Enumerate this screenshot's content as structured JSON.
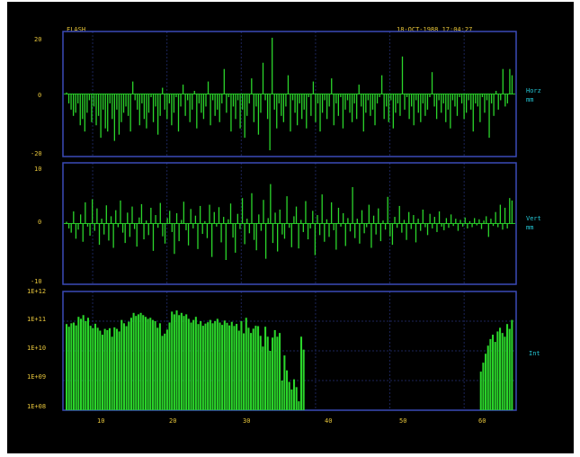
{
  "header": {
    "label": "FLASH",
    "timestamp": "18-OCT-1988 17:04:27"
  },
  "colors": {
    "background": "#000000",
    "frame": "#3a4ab8",
    "grid": "#1b2458",
    "bar": "#2bd62b",
    "axis_text": "#e6c53b",
    "side_text": "#24c7d6"
  },
  "chart_data": [
    {
      "type": "bar",
      "panel": "horizontal",
      "side_label": [
        "Horz",
        "mm"
      ],
      "y_ticks": [
        "20",
        "0",
        "-20"
      ],
      "ylim": [
        -20,
        20
      ],
      "grid": true,
      "values": [
        0.5,
        -3,
        -5,
        -7,
        -6,
        -3,
        -10,
        -8,
        -12,
        -6,
        -2,
        -9,
        -4,
        -10,
        -7,
        -14,
        -5,
        -11,
        -12,
        -3,
        -8,
        -15,
        -5,
        -13,
        -9,
        -6,
        -4,
        -7,
        -12,
        4,
        -2,
        -5,
        -10,
        -3,
        -8,
        -11,
        -6,
        -1,
        -9,
        -4,
        -13,
        -7,
        2,
        -5,
        -8,
        -3,
        -10,
        -6,
        -1,
        -12,
        -4,
        3,
        -7,
        -2,
        -9,
        -5,
        1,
        -11,
        -3,
        -6,
        -8,
        -4,
        4,
        -10,
        -2,
        -7,
        -5,
        -9,
        -3,
        8,
        -6,
        -1,
        -12,
        -4,
        -8,
        -2,
        -11,
        -5,
        -14,
        -7,
        -3,
        5,
        -9,
        -4,
        -13,
        -6,
        10,
        -2,
        -8,
        -18,
        18,
        -5,
        -11,
        -3,
        -7,
        -9,
        -4,
        6,
        -12,
        -2,
        -6,
        -10,
        -3,
        -8,
        -5,
        -11,
        -1,
        -7,
        4,
        -9,
        -3,
        -12,
        -6,
        -2,
        -8,
        -4,
        5,
        -10,
        -3,
        -7,
        -1,
        -11,
        -5,
        -2,
        -6,
        -9,
        -3,
        -8,
        3,
        -4,
        -12,
        -6,
        -2,
        -7,
        -5,
        -10,
        -3,
        -1,
        6,
        -8,
        -4,
        -9,
        -2,
        -11,
        -6,
        -3,
        -7,
        12,
        -5,
        -1,
        -8,
        -4,
        -10,
        -2,
        -6,
        -9,
        -3,
        -7,
        -5,
        -1,
        7,
        -4,
        -8,
        -2,
        -6,
        -3,
        -9,
        -5,
        -11,
        -2,
        -4,
        -7,
        -1,
        -3,
        -8,
        -6,
        -2,
        -5,
        -12,
        -3,
        -4,
        -9,
        -1,
        -6,
        -2,
        -14,
        -3,
        -7,
        1,
        -5,
        -2,
        8,
        -4,
        -3,
        8,
        6
      ]
    },
    {
      "type": "bar",
      "panel": "vertical",
      "side_label": [
        "Vert",
        "mm"
      ],
      "y_ticks": [
        "10",
        "0",
        "-10"
      ],
      "ylim": [
        -10,
        10
      ],
      "grid": true,
      "values": [
        0.3,
        -0.8,
        -1.5,
        2,
        -2.5,
        -1,
        1.5,
        -3,
        3.5,
        -0.5,
        -2,
        4,
        -1.2,
        2.5,
        -3.5,
        0.8,
        -1.8,
        3,
        -2.8,
        1.2,
        -4,
        2.2,
        -0.6,
        3.8,
        -1.5,
        -3.2,
        1.8,
        -2.2,
        2.8,
        -0.9,
        -3.8,
        1,
        3.2,
        -2.6,
        0.5,
        -1.9,
        2.6,
        -4.5,
        1.4,
        -0.7,
        3.4,
        -2.1,
        -3.3,
        0.9,
        2.1,
        -1.4,
        -5,
        1.7,
        -2.9,
        0.6,
        3.6,
        -1.1,
        -3.6,
        2.4,
        -0.8,
        1.3,
        -4.2,
        2.9,
        -1.7,
        0.4,
        -2.4,
        3.1,
        -5.5,
        1.9,
        -0.5,
        2.7,
        -3.1,
        1.1,
        -6,
        0.7,
        3.3,
        -2.3,
        -4.8,
        1.6,
        -0.9,
        4.2,
        -3.4,
        0.8,
        -1.6,
        5,
        -2.7,
        -4.4,
        1.5,
        -1.2,
        3.9,
        -5.8,
        0.9,
        6.5,
        -3.2,
        1.8,
        -4.6,
        2.3,
        -1.8,
        -2.5,
        4.5,
        -0.7,
        -3.9,
        1.2,
        2.8,
        -4.1,
        0.6,
        -1.4,
        3.7,
        -2.6,
        -0.8,
        2.1,
        -5.2,
        1.4,
        -1.9,
        4.8,
        -3,
        0.7,
        -2.2,
        3.5,
        -1.1,
        -4.3,
        2.6,
        -0.5,
        1.7,
        -3.7,
        0.9,
        -1.3,
        6,
        -2.4,
        0.8,
        -3.3,
        2.2,
        -1.6,
        -0.6,
        3.1,
        -4,
        1.3,
        -1.8,
        2.5,
        -2.9,
        0.5,
        -1,
        4.4,
        -2.1,
        -3.5,
        1.1,
        -0.7,
        2.9,
        -1.5,
        0.6,
        -2.7,
        1.9,
        -0.9,
        1.4,
        -3.1,
        0.8,
        -1.2,
        2.3,
        -0.6,
        -1.9,
        1.6,
        -0.8,
        1.1,
        -1.4,
        2,
        -0.5,
        -1.1,
        0.9,
        -0.7,
        1.5,
        -0.4,
        0.8,
        -1.2,
        0.6,
        -0.5,
        1,
        -0.8,
        0.4,
        -0.6,
        0.9,
        -0.3,
        0.7,
        -0.9,
        0.5,
        1.2,
        -2.2,
        0.8,
        -0.4,
        1.9,
        -0.6,
        3.1,
        -1,
        2.6,
        -0.8,
        4.2,
        3.8
      ]
    },
    {
      "type": "bar",
      "panel": "intensity",
      "side_label": [
        "Int"
      ],
      "y_scale": "log",
      "y_ticks": [
        "1E+12",
        "1E+11",
        "1E+10",
        "1E+09",
        "1E+08"
      ],
      "ylim": [
        100000000,
        1000000000000
      ],
      "grid": true,
      "x_ticks": [
        "10",
        "20",
        "30",
        "40",
        "50",
        "60"
      ],
      "x_tick_positions": [
        10,
        20,
        30,
        40,
        50,
        60
      ],
      "xlim": [
        6,
        67
      ],
      "values": [
        80000000000.0,
        65000000000.0,
        85000000000.0,
        90000000000.0,
        72000000000.0,
        140000000000.0,
        120000000000.0,
        160000000000.0,
        100000000000.0,
        130000000000.0,
        70000000000.0,
        58000000000.0,
        82000000000.0,
        60000000000.0,
        48000000000.0,
        35000000000.0,
        55000000000.0,
        50000000000.0,
        58000000000.0,
        30000000000.0,
        62000000000.0,
        55000000000.0,
        45000000000.0,
        110000000000.0,
        85000000000.0,
        68000000000.0,
        96000000000.0,
        130000000000.0,
        190000000000.0,
        150000000000.0,
        170000000000.0,
        190000000000.0,
        160000000000.0,
        140000000000.0,
        120000000000.0,
        130000000000.0,
        110000000000.0,
        100000000000.0,
        60000000000.0,
        85000000000.0,
        32000000000.0,
        38000000000.0,
        52000000000.0,
        90000000000.0,
        210000000000.0,
        170000000000.0,
        230000000000.0,
        160000000000.0,
        190000000000.0,
        150000000000.0,
        170000000000.0,
        120000000000.0,
        90000000000.0,
        110000000000.0,
        140000000000.0,
        80000000000.0,
        100000000000.0,
        70000000000.0,
        83000000000.0,
        92000000000.0,
        110000000000.0,
        85000000000.0,
        100000000000.0,
        120000000000.0,
        90000000000.0,
        75000000000.0,
        105000000000.0,
        88000000000.0,
        72000000000.0,
        95000000000.0,
        69000000000.0,
        81000000000.0,
        48000000000.0,
        100000000000.0,
        39000000000.0,
        130000000000.0,
        60000000000.0,
        40000000000.0,
        56000000000.0,
        70000000000.0,
        68000000000.0,
        32000000000.0,
        14000000000.0,
        65000000000.0,
        30000000000.0,
        10000000000.0,
        28000000000.0,
        50000000000.0,
        30000000000.0,
        40000000000.0,
        1000000000.0,
        7000000000.0,
        2200000000.0,
        900000000.0,
        500000000.0,
        1100000000.0,
        600000000.0,
        200000000.0,
        30000000000.0,
        11000000000.0,
        100000000.0,
        100000000.0,
        100000000.0,
        100000000.0,
        100000000.0,
        100000000.0,
        100000000.0,
        100000000.0,
        100000000.0,
        100000000.0,
        100000000.0,
        100000000.0,
        100000000.0,
        100000000.0,
        100000000.0,
        100000000.0,
        100000000.0,
        100000000.0,
        100000000.0,
        100000000.0,
        100000000.0,
        100000000.0,
        100000000.0,
        100000000.0,
        100000000.0,
        100000000.0,
        100000000.0,
        100000000.0,
        100000000.0,
        100000000.0,
        100000000.0,
        100000000.0,
        100000000.0,
        100000000.0,
        100000000.0,
        100000000.0,
        100000000.0,
        100000000.0,
        100000000.0,
        100000000.0,
        100000000.0,
        100000000.0,
        100000000.0,
        100000000.0,
        100000000.0,
        100000000.0,
        100000000.0,
        100000000.0,
        100000000.0,
        100000000.0,
        100000000.0,
        100000000.0,
        100000000.0,
        100000000.0,
        100000000.0,
        100000000.0,
        100000000.0,
        100000000.0,
        100000000.0,
        100000000.0,
        100000000.0,
        100000000.0,
        100000000.0,
        100000000.0,
        100000000.0,
        100000000.0,
        100000000.0,
        100000000.0,
        100000000.0,
        100000000.0,
        100000000.0,
        100000000.0,
        100000000.0,
        2000000000.0,
        4000000000.0,
        8000000000.0,
        15000000000.0,
        25000000000.0,
        35000000000.0,
        20000000000.0,
        45000000000.0,
        60000000000.0,
        40000000000.0,
        30000000000.0,
        80000000000.0,
        55000000000.0,
        110000000000.0
      ]
    }
  ]
}
